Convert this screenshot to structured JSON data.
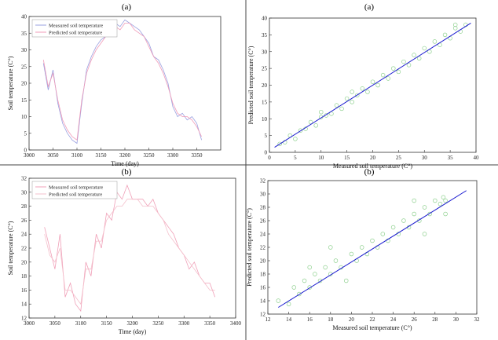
{
  "figure": {
    "panel_titles": [
      "(a)",
      "(a)",
      "(b)",
      "(b)"
    ]
  },
  "chart_data": [
    {
      "type": "line",
      "title": "(a)",
      "xlabel": "Time (day)",
      "ylabel": "Soil temperature (C°)",
      "xlim": [
        3000,
        3400
      ],
      "ylim": [
        0,
        40
      ],
      "xticks": [
        3000,
        3050,
        3100,
        3150,
        3200,
        3250,
        3300,
        3350
      ],
      "yticks": [
        0,
        5,
        10,
        15,
        20,
        25,
        30,
        35,
        40
      ],
      "legend": {
        "position": "top-left",
        "entries": [
          "Measured soil temperature",
          "Predicted soil temperature"
        ]
      },
      "colors": {
        "measured": "#9aa0e0",
        "predicted": "#f09bb8"
      },
      "series": [
        {
          "name": "Measured soil temperature",
          "x": [
            3030,
            3040,
            3050,
            3060,
            3070,
            3080,
            3090,
            3100,
            3110,
            3120,
            3130,
            3140,
            3150,
            3160,
            3170,
            3180,
            3190,
            3200,
            3210,
            3220,
            3230,
            3240,
            3250,
            3260,
            3270,
            3280,
            3290,
            3300,
            3310,
            3320,
            3330,
            3340,
            3350,
            3360
          ],
          "values": [
            26,
            18,
            24,
            14,
            8,
            5,
            3,
            2,
            14,
            24,
            28,
            31,
            33,
            34,
            36,
            38,
            37,
            39,
            38,
            37,
            36,
            34,
            32,
            28,
            27,
            24,
            20,
            13,
            10,
            11,
            9,
            10,
            8,
            3
          ]
        },
        {
          "name": "Predicted soil temperature",
          "x": [
            3030,
            3040,
            3050,
            3060,
            3070,
            3080,
            3090,
            3100,
            3110,
            3120,
            3130,
            3140,
            3150,
            3160,
            3170,
            3180,
            3190,
            3200,
            3210,
            3220,
            3230,
            3240,
            3250,
            3260,
            3270,
            3280,
            3290,
            3300,
            3310,
            3320,
            3330,
            3340,
            3350,
            3360
          ],
          "values": [
            27,
            19,
            23,
            15,
            9,
            6,
            4,
            3,
            15,
            23,
            27,
            30,
            32,
            34,
            35,
            37,
            36,
            38,
            38,
            36,
            35,
            34,
            31,
            28,
            26,
            23,
            19,
            14,
            11,
            10,
            10,
            9,
            7,
            4
          ]
        }
      ]
    },
    {
      "type": "scatter",
      "title": "(a)",
      "xlabel": "Measured soil temperature (C°)",
      "ylabel": "Predicted soil temperature (C°)",
      "xlim": [
        0,
        40
      ],
      "ylim": [
        0,
        40
      ],
      "xticks": [
        0,
        5,
        10,
        15,
        20,
        25,
        30,
        35,
        40
      ],
      "yticks": [
        0,
        5,
        10,
        15,
        20,
        25,
        30,
        35,
        40
      ],
      "colors": {
        "points": "#8ed08e",
        "fit": "#1a1ad0"
      },
      "fit_line": {
        "x": [
          1,
          39
        ],
        "y": [
          1.5,
          38.5
        ]
      },
      "points": [
        [
          2,
          2.5
        ],
        [
          3,
          3
        ],
        [
          4,
          5
        ],
        [
          5,
          4
        ],
        [
          6,
          6.5
        ],
        [
          7,
          7
        ],
        [
          8,
          9
        ],
        [
          9,
          8
        ],
        [
          10,
          10.5
        ],
        [
          10,
          12
        ],
        [
          11,
          11
        ],
        [
          12,
          11.5
        ],
        [
          13,
          14
        ],
        [
          14,
          13
        ],
        [
          15,
          16
        ],
        [
          16,
          15
        ],
        [
          16,
          18
        ],
        [
          17,
          17
        ],
        [
          18,
          19
        ],
        [
          19,
          18
        ],
        [
          20,
          21
        ],
        [
          21,
          20
        ],
        [
          22,
          23
        ],
        [
          23,
          22
        ],
        [
          24,
          25
        ],
        [
          25,
          24
        ],
        [
          26,
          27
        ],
        [
          27,
          26
        ],
        [
          28,
          29
        ],
        [
          29,
          28
        ],
        [
          30,
          31
        ],
        [
          31,
          30
        ],
        [
          32,
          33
        ],
        [
          33,
          32
        ],
        [
          34,
          35
        ],
        [
          35,
          34
        ],
        [
          36,
          37
        ],
        [
          36,
          38
        ],
        [
          37,
          36
        ],
        [
          38,
          38
        ]
      ]
    },
    {
      "type": "line",
      "title": "(b)",
      "xlabel": "Time (day)",
      "ylabel": "Soil temperature (C°)",
      "xlim": [
        3000,
        3400
      ],
      "ylim": [
        12,
        32
      ],
      "xticks": [
        3000,
        3050,
        3100,
        3150,
        3200,
        3250,
        3300,
        3350,
        3400
      ],
      "yticks": [
        12,
        14,
        16,
        18,
        20,
        22,
        24,
        26,
        28,
        30,
        32
      ],
      "legend": {
        "position": "top-left",
        "entries": [
          "Measured soil temperature",
          "Predicted soil temperature"
        ]
      },
      "colors": {
        "measured": "#f0a0b8",
        "predicted": "#f4c0cc"
      },
      "series": [
        {
          "name": "Measured soil temperature",
          "x": [
            3030,
            3040,
            3050,
            3060,
            3070,
            3080,
            3090,
            3100,
            3110,
            3120,
            3130,
            3140,
            3150,
            3160,
            3170,
            3180,
            3190,
            3200,
            3210,
            3220,
            3230,
            3240,
            3250,
            3260,
            3270,
            3280,
            3290,
            3300,
            3310,
            3320,
            3330,
            3340,
            3350,
            3360
          ],
          "values": [
            25,
            22,
            19,
            24,
            15,
            17,
            14,
            13,
            20,
            18,
            24,
            22,
            27,
            26,
            30,
            29,
            31,
            29,
            29,
            29,
            28,
            29,
            27,
            26,
            25,
            24,
            22,
            21,
            19,
            20,
            18,
            17,
            17,
            15
          ]
        },
        {
          "name": "Predicted soil temperature",
          "x": [
            3030,
            3040,
            3050,
            3060,
            3070,
            3080,
            3090,
            3100,
            3110,
            3120,
            3130,
            3140,
            3150,
            3160,
            3170,
            3180,
            3190,
            3200,
            3210,
            3220,
            3230,
            3240,
            3250,
            3260,
            3270,
            3280,
            3290,
            3300,
            3310,
            3320,
            3330,
            3340,
            3350,
            3360
          ],
          "values": [
            24,
            21,
            20,
            22,
            16,
            16,
            15,
            14,
            19,
            19,
            23,
            23,
            26,
            27,
            28,
            28,
            29,
            29,
            29,
            28,
            28,
            28,
            27,
            26,
            24,
            23,
            22,
            21,
            20,
            19,
            18,
            17,
            16,
            16
          ]
        }
      ]
    },
    {
      "type": "scatter",
      "title": "(b)",
      "xlabel": "Measured soil temperature (C°)",
      "ylabel": "Predicted soil temperature (C°)",
      "xlim": [
        12,
        32
      ],
      "ylim": [
        12,
        32
      ],
      "xticks": [
        12,
        14,
        16,
        18,
        20,
        22,
        24,
        26,
        28,
        30,
        32
      ],
      "yticks": [
        12,
        14,
        16,
        18,
        20,
        22,
        24,
        26,
        28,
        30,
        32
      ],
      "colors": {
        "points": "#8ed08e",
        "fit": "#1a1ad0"
      },
      "fit_line": {
        "x": [
          13,
          31
        ],
        "y": [
          13,
          30.5
        ]
      },
      "points": [
        [
          13,
          14
        ],
        [
          14,
          13.5
        ],
        [
          14.5,
          16
        ],
        [
          15,
          15
        ],
        [
          15.5,
          17
        ],
        [
          16,
          16
        ],
        [
          16.5,
          18
        ],
        [
          17,
          17
        ],
        [
          17.5,
          19
        ],
        [
          18,
          18
        ],
        [
          18.5,
          20
        ],
        [
          19,
          19
        ],
        [
          19.5,
          17
        ],
        [
          20,
          21
        ],
        [
          20.5,
          20
        ],
        [
          21,
          22
        ],
        [
          21.5,
          21
        ],
        [
          22,
          23
        ],
        [
          22.5,
          22
        ],
        [
          23,
          24
        ],
        [
          23.5,
          23
        ],
        [
          24,
          25
        ],
        [
          24.5,
          24
        ],
        [
          25,
          26
        ],
        [
          25.5,
          25
        ],
        [
          26,
          27
        ],
        [
          26.5,
          26
        ],
        [
          27,
          28
        ],
        [
          27.5,
          27
        ],
        [
          28,
          29
        ],
        [
          28.5,
          28.5
        ],
        [
          29,
          29
        ],
        [
          29,
          27
        ],
        [
          28.8,
          29.5
        ],
        [
          27,
          24
        ],
        [
          26,
          29
        ],
        [
          18,
          22
        ],
        [
          16,
          19
        ]
      ]
    }
  ]
}
